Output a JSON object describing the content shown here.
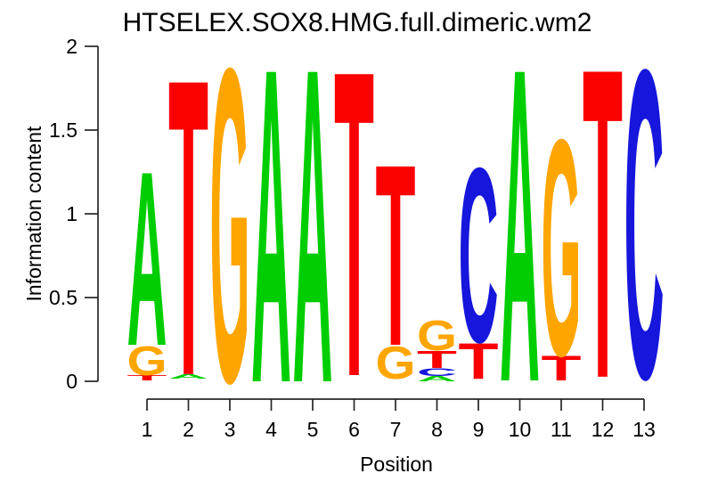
{
  "chart_data": {
    "type": "sequence_logo",
    "title": "HTSELEX.SOX8.HMG.full.dimeric.wm2",
    "xlabel": "Position",
    "ylabel": "Information content",
    "ylim": [
      0,
      2
    ],
    "y_ticks": [
      "0",
      "0.5",
      "1",
      "1.5",
      "2"
    ],
    "y_tick_values": [
      0,
      0.5,
      1,
      1.5,
      2
    ],
    "x_ticks": [
      "1",
      "2",
      "3",
      "4",
      "5",
      "6",
      "7",
      "8",
      "9",
      "10",
      "11",
      "12",
      "13"
    ],
    "grid": "off",
    "legend": "none",
    "base_colors": {
      "A": "#00CE00",
      "C": "#1616DC",
      "G": "#FFA500",
      "T": "#FA0000"
    },
    "axis_color": "#262626",
    "stacks": [
      {
        "position": 1,
        "letters": [
          {
            "base": "T",
            "from": 0.005,
            "to": 0.037
          },
          {
            "base": "G",
            "from": 0.037,
            "to": 0.218
          },
          {
            "base": "A",
            "from": 0.218,
            "to": 1.303
          }
        ]
      },
      {
        "position": 2,
        "letters": [
          {
            "base": "A",
            "from": 0.016,
            "to": 0.043
          },
          {
            "base": "T",
            "from": 0.043,
            "to": 1.888
          }
        ]
      },
      {
        "position": 3,
        "letters": [
          {
            "base": "G",
            "from": 0.005,
            "to": 1.957
          }
        ]
      },
      {
        "position": 4,
        "letters": [
          {
            "base": "A",
            "from": 0.0,
            "to": 1.957
          }
        ]
      },
      {
        "position": 5,
        "letters": [
          {
            "base": "A",
            "from": 0.0,
            "to": 1.957
          }
        ]
      },
      {
        "position": 6,
        "letters": [
          {
            "base": "T",
            "from": 0.037,
            "to": 1.941
          }
        ]
      },
      {
        "position": 7,
        "letters": [
          {
            "base": "G",
            "from": 0.016,
            "to": 0.218
          },
          {
            "base": "T",
            "from": 0.218,
            "to": 1.346
          }
        ]
      },
      {
        "position": 8,
        "letters": [
          {
            "base": "A",
            "from": 0.0,
            "to": 0.032
          },
          {
            "base": "C",
            "from": 0.032,
            "to": 0.08
          },
          {
            "base": "T",
            "from": 0.08,
            "to": 0.186
          },
          {
            "base": "G",
            "from": 0.186,
            "to": 0.372
          }
        ]
      },
      {
        "position": 9,
        "letters": [
          {
            "base": "T",
            "from": 0.016,
            "to": 0.239
          },
          {
            "base": "C",
            "from": 0.239,
            "to": 1.324
          }
        ]
      },
      {
        "position": 10,
        "letters": [
          {
            "base": "A",
            "from": 0.005,
            "to": 1.957
          }
        ]
      },
      {
        "position": 11,
        "letters": [
          {
            "base": "T",
            "from": 0.005,
            "to": 0.16
          },
          {
            "base": "G",
            "from": 0.16,
            "to": 1.505
          }
        ]
      },
      {
        "position": 12,
        "letters": [
          {
            "base": "T",
            "from": 0.027,
            "to": 1.957
          }
        ]
      },
      {
        "position": 13,
        "letters": [
          {
            "base": "C",
            "from": 0.027,
            "to": 1.947
          }
        ]
      }
    ]
  }
}
